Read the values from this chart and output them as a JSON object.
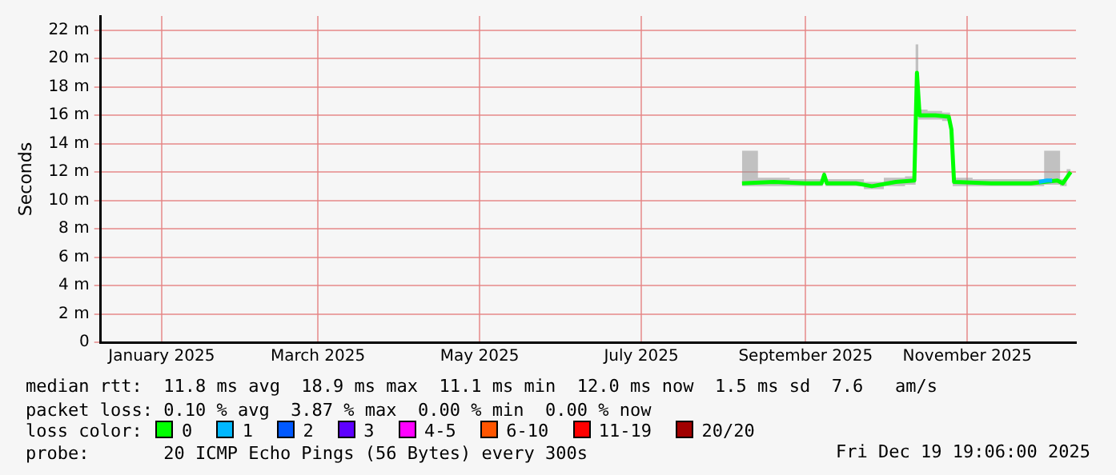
{
  "chart_data": {
    "type": "line",
    "ylabel": "Seconds",
    "legend_title": "loss color:",
    "legend": "bottom",
    "grid": true,
    "marker": "none",
    "xlim": [
      "2024-12-09",
      "2025-12-12"
    ],
    "xticks": [
      {
        "value": "2025-01-01",
        "label": "January 2025"
      },
      {
        "value": "2025-03-01",
        "label": "March 2025"
      },
      {
        "value": "2025-05-01",
        "label": "May 2025"
      },
      {
        "value": "2025-07-01",
        "label": "July 2025"
      },
      {
        "value": "2025-09-01",
        "label": "September 2025"
      },
      {
        "value": "2025-11-01",
        "label": "November 2025"
      }
    ],
    "ylim": [
      0,
      23
    ],
    "yticks": [
      0,
      {
        "value": 2,
        "label": "2 m"
      },
      {
        "value": 4,
        "label": "4 m"
      },
      {
        "value": 6,
        "label": "6 m"
      },
      {
        "value": 8,
        "label": "8 m"
      },
      {
        "value": 10,
        "label": "10 m"
      },
      {
        "value": 12,
        "label": "12 m"
      },
      {
        "value": 14,
        "label": "14 m"
      },
      {
        "value": 16,
        "label": "16 m"
      },
      {
        "value": 18,
        "label": "18 m"
      },
      {
        "value": 20,
        "label": "20 m"
      },
      {
        "value": 22,
        "label": "22 m"
      }
    ],
    "series": [
      {
        "name": "0",
        "color": "#00ff00",
        "x": [
          "2025-08-08",
          "2025-08-20",
          "2025-09-01",
          "2025-09-07",
          "2025-09-08",
          "2025-09-09",
          "2025-09-20",
          "2025-09-26",
          "2025-10-05",
          "2025-10-12",
          "2025-10-13",
          "2025-10-14",
          "2025-10-20",
          "2025-10-25",
          "2025-10-26",
          "2025-10-27",
          "2025-11-10",
          "2025-11-25",
          "2025-12-05",
          "2025-12-07",
          "2025-12-10"
        ],
        "values": [
          11.2,
          11.3,
          11.2,
          11.2,
          11.8,
          11.2,
          11.2,
          11.0,
          11.3,
          11.4,
          19.0,
          16.0,
          16.0,
          15.9,
          15.0,
          11.3,
          11.2,
          11.2,
          11.4,
          11.2,
          12.0
        ],
        "upper": [
          13.5,
          11.6,
          11.5,
          11.5,
          12.0,
          11.5,
          11.5,
          11.3,
          11.6,
          11.7,
          21.0,
          16.4,
          16.3,
          16.2,
          15.3,
          11.6,
          11.5,
          11.5,
          13.5,
          11.5,
          12.2
        ],
        "lower": [
          11.0,
          11.0,
          11.0,
          11.0,
          11.4,
          11.0,
          11.0,
          10.8,
          11.0,
          11.1,
          17.0,
          15.7,
          15.7,
          15.6,
          14.7,
          11.0,
          11.0,
          11.0,
          11.1,
          11.0,
          11.8
        ]
      },
      {
        "name": "1",
        "color": "#00b8ff",
        "x": [
          "2025-11-28",
          "2025-12-01",
          "2025-12-03"
        ],
        "values": [
          11.3,
          11.4,
          11.4
        ]
      },
      {
        "name": "2",
        "color": "#0059ff"
      },
      {
        "name": "3",
        "color": "#5e00ff"
      },
      {
        "name": "4-5",
        "color": "#ff00ff"
      },
      {
        "name": "6-10",
        "color": "#ff5500"
      },
      {
        "name": "11-19",
        "color": "#ff0000"
      },
      {
        "name": "20/20",
        "color": "#a10000"
      }
    ],
    "annotations": [
      "median rtt:  11.8 ms avg  18.9 ms max  11.1 ms min  12.0 ms now  1.5 ms sd  7.6   am/s",
      "packet loss: 0.10 % avg  3.87 % max  0.00 % min  0.00 % now",
      "probe:       20 ICMP Echo Pings (56 Bytes) every 300s",
      "Fri Dec 19 19:06:00 2025"
    ]
  }
}
